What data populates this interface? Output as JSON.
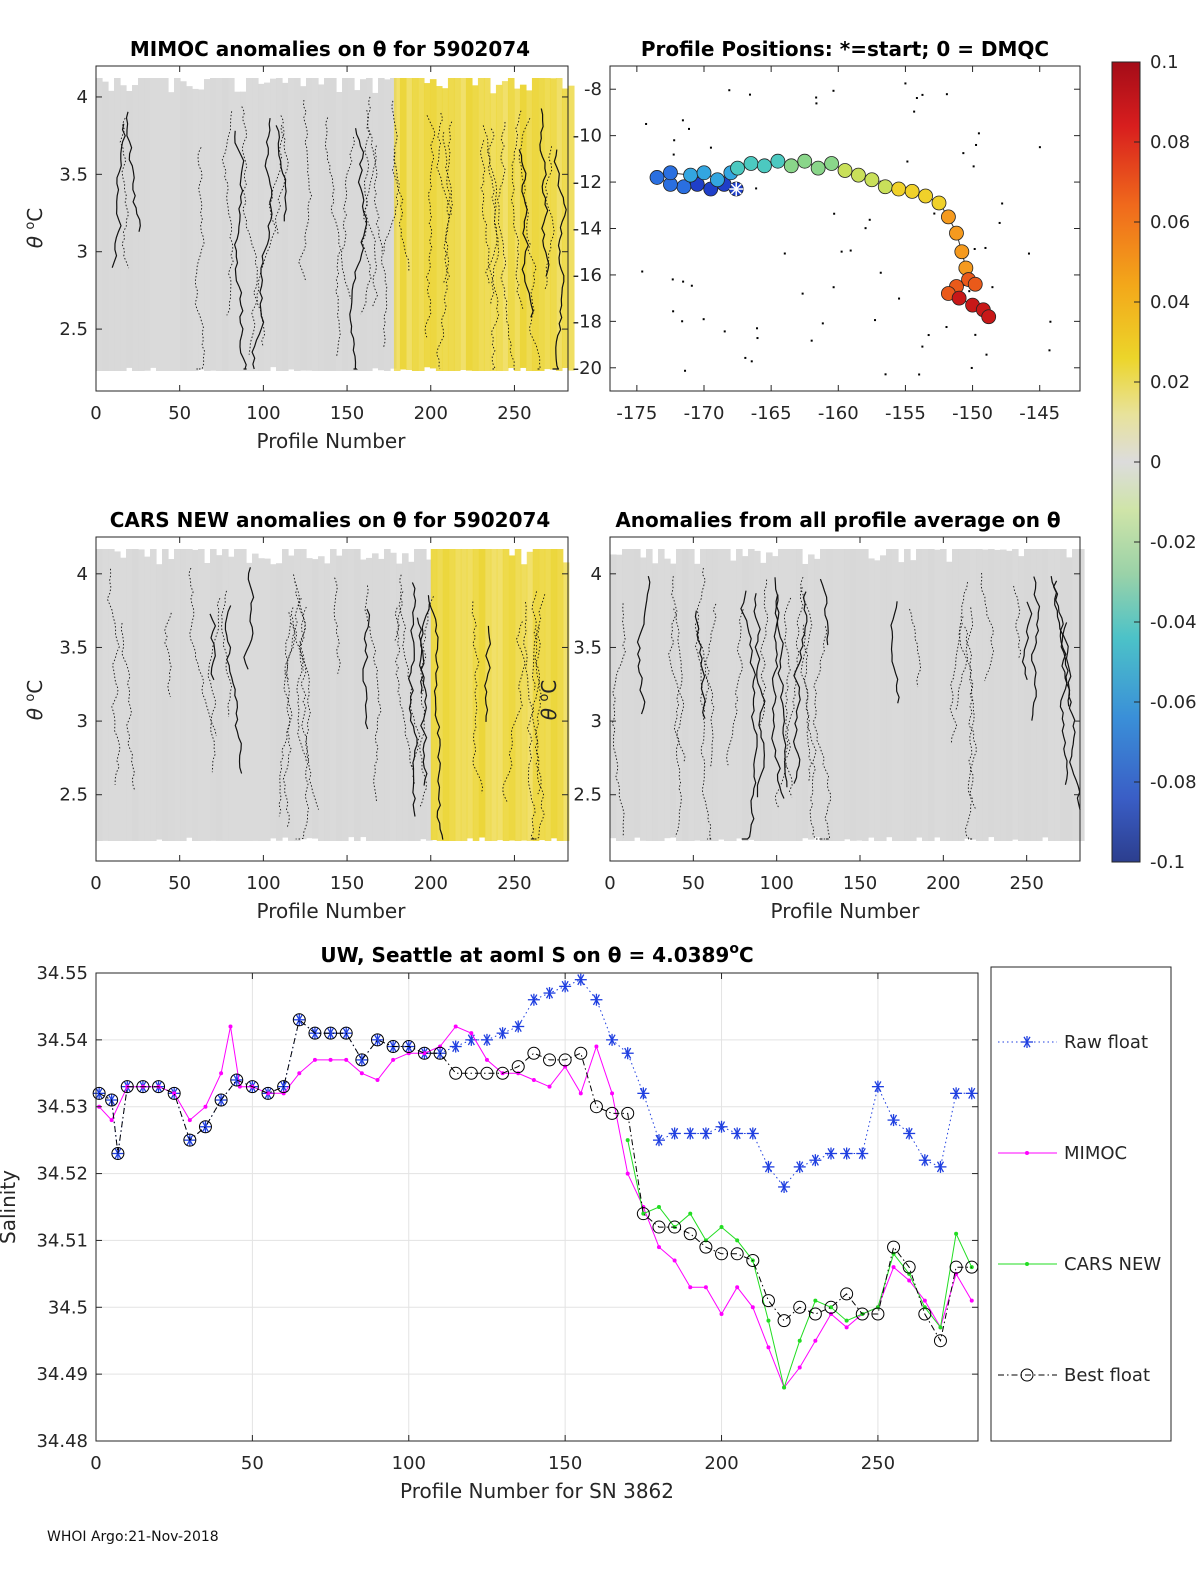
{
  "footer": "WHOI Argo:21-Nov-2018",
  "colors": {
    "grey": "#d8d8d8",
    "yellow": "#ecd63a",
    "raw": "#1f3fe0",
    "mimoc": "#ff00ff",
    "cars": "#22dd22",
    "best": "#000000"
  },
  "chart_data": [
    {
      "id": "mimoc_anom",
      "type": "heatmap",
      "title": "MIMOC anomalies on θ  for 5902074",
      "xlabel": "Profile Number",
      "ylabel_main": "θ ",
      "ylabel_unit": "C",
      "xlim": [
        0,
        282
      ],
      "ylim": [
        2.1,
        4.2
      ],
      "xticks": [
        "0",
        "50",
        "100",
        "150",
        "200",
        "250"
      ],
      "yticks": [
        "2.5",
        "3",
        "3.5",
        "4"
      ],
      "regions": [
        {
          "from": 0,
          "to": 178,
          "color": "grey"
        },
        {
          "from": 178,
          "to": 282,
          "color": "yellow"
        }
      ]
    },
    {
      "id": "positions",
      "type": "scatter",
      "title": "Profile Positions: *=start; 0 = DMQC",
      "xlim": [
        -177,
        -142
      ],
      "ylim": [
        -21,
        -7
      ],
      "xticks": [
        "-175",
        "-170",
        "-165",
        "-160",
        "-155",
        "-150",
        "-145"
      ],
      "yticks": [
        "-8",
        "-10",
        "-12",
        "-14",
        "-16",
        "-18",
        "-20"
      ],
      "track": [
        [
          -167.6,
          -12.3
        ],
        [
          -168.5,
          -12.1
        ],
        [
          -169.5,
          -12.3
        ],
        [
          -170.5,
          -12.1
        ],
        [
          -171.5,
          -12.2
        ],
        [
          -172.5,
          -12.1
        ],
        [
          -173.5,
          -11.8
        ],
        [
          -172.5,
          -11.6
        ],
        [
          -171.0,
          -11.7
        ],
        [
          -170.0,
          -11.6
        ],
        [
          -169.0,
          -11.9
        ],
        [
          -168.0,
          -11.6
        ],
        [
          -167.5,
          -11.4
        ],
        [
          -166.5,
          -11.2
        ],
        [
          -165.5,
          -11.3
        ],
        [
          -164.5,
          -11.1
        ],
        [
          -163.5,
          -11.3
        ],
        [
          -162.5,
          -11.1
        ],
        [
          -161.5,
          -11.4
        ],
        [
          -160.5,
          -11.2
        ],
        [
          -159.5,
          -11.5
        ],
        [
          -158.5,
          -11.7
        ],
        [
          -157.5,
          -11.9
        ],
        [
          -156.5,
          -12.2
        ],
        [
          -155.5,
          -12.3
        ],
        [
          -154.5,
          -12.4
        ],
        [
          -153.5,
          -12.6
        ],
        [
          -152.5,
          -12.9
        ],
        [
          -151.8,
          -13.5
        ],
        [
          -151.2,
          -14.2
        ],
        [
          -150.8,
          -15.0
        ],
        [
          -150.5,
          -15.7
        ],
        [
          -150.3,
          -16.2
        ],
        [
          -149.8,
          -16.4
        ],
        [
          -151.2,
          -16.5
        ],
        [
          -151.8,
          -16.8
        ],
        [
          -151.0,
          -17.0
        ],
        [
          -150.0,
          -17.3
        ],
        [
          -149.2,
          -17.5
        ],
        [
          -148.8,
          -17.8
        ]
      ],
      "start": [
        -167.6,
        -12.3
      ],
      "colorbar": {
        "ticks": [
          "0.1",
          "0.08",
          "0.06",
          "0.04",
          "0.02",
          "0",
          "-0.02",
          "-0.04",
          "-0.06",
          "-0.08",
          "-0.1"
        ]
      }
    },
    {
      "id": "cars_anom",
      "type": "heatmap",
      "title": "CARS NEW anomalies on θ for 5902074",
      "xlabel": "Profile Number",
      "ylabel_main": "θ ",
      "ylabel_unit": "C",
      "xlim": [
        0,
        282
      ],
      "ylim": [
        2.05,
        4.25
      ],
      "xticks": [
        "0",
        "50",
        "100",
        "150",
        "200",
        "250"
      ],
      "yticks": [
        "2.5",
        "3",
        "3.5",
        "4"
      ],
      "regions": [
        {
          "from": 0,
          "to": 200,
          "color": "grey"
        },
        {
          "from": 200,
          "to": 282,
          "color": "yellow"
        }
      ]
    },
    {
      "id": "avg_anom",
      "type": "heatmap",
      "title": "Anomalies from all profile average on θ",
      "xlabel": "Profile Number",
      "ylabel_main": "θ ",
      "ylabel_unit": "C",
      "xlim": [
        0,
        282
      ],
      "ylim": [
        2.05,
        4.25
      ],
      "xticks": [
        "0",
        "50",
        "100",
        "150",
        "200",
        "250"
      ],
      "yticks": [
        "2.5",
        "3",
        "3.5",
        "4"
      ],
      "regions": [
        {
          "from": 0,
          "to": 282,
          "color": "grey"
        }
      ]
    },
    {
      "id": "salinity",
      "type": "line",
      "title": "UW, Seattle at aoml S on θ = 4.0389",
      "title_sup": "o",
      "title_unit": "C",
      "xlabel": "Profile Number for SN 3862",
      "ylabel": "Salinity",
      "xlim": [
        0,
        282
      ],
      "ylim": [
        34.48,
        34.55
      ],
      "xticks": [
        "0",
        "50",
        "100",
        "150",
        "200",
        "250"
      ],
      "yticks": [
        "34.48",
        "34.49",
        "34.5",
        "34.51",
        "34.52",
        "34.53",
        "34.54",
        "34.55"
      ],
      "series": [
        {
          "name": "Raw float",
          "color": "raw",
          "style": "star-dotted",
          "x": [
            1,
            5,
            7,
            10,
            15,
            20,
            25,
            30,
            35,
            40,
            45,
            50,
            55,
            60,
            65,
            70,
            75,
            80,
            85,
            90,
            95,
            100,
            105,
            110,
            115,
            120,
            125,
            130,
            135,
            140,
            145,
            150,
            155,
            160,
            165,
            170,
            175,
            180,
            185,
            190,
            195,
            200,
            205,
            210,
            215,
            220,
            225,
            230,
            235,
            240,
            245,
            250,
            255,
            260,
            265,
            270,
            275,
            280
          ],
          "y": [
            34.532,
            34.531,
            34.523,
            34.533,
            34.533,
            34.533,
            34.532,
            34.525,
            34.527,
            34.531,
            34.534,
            34.533,
            34.532,
            34.533,
            34.543,
            34.541,
            34.541,
            34.541,
            34.537,
            34.54,
            34.539,
            34.539,
            34.538,
            34.538,
            34.539,
            34.54,
            34.54,
            34.541,
            34.542,
            34.546,
            34.547,
            34.548,
            34.549,
            34.546,
            34.54,
            34.538,
            34.532,
            34.525,
            34.526,
            34.526,
            34.526,
            34.527,
            34.526,
            34.526,
            34.521,
            34.518,
            34.521,
            34.522,
            34.523,
            34.523,
            34.523,
            34.533,
            34.528,
            34.526,
            34.522,
            34.521,
            34.532,
            34.532
          ]
        },
        {
          "name": "MIMOC",
          "color": "mimoc",
          "style": "dot-line",
          "x": [
            1,
            5,
            10,
            15,
            20,
            25,
            30,
            35,
            40,
            43,
            46,
            50,
            55,
            60,
            65,
            70,
            75,
            80,
            85,
            90,
            95,
            100,
            105,
            110,
            115,
            120,
            125,
            130,
            135,
            140,
            145,
            150,
            155,
            160,
            165,
            170,
            175,
            180,
            185,
            190,
            195,
            200,
            205,
            210,
            215,
            220,
            225,
            230,
            235,
            240,
            245,
            250,
            255,
            260,
            265,
            270,
            275,
            280
          ],
          "y": [
            34.53,
            34.528,
            34.533,
            34.533,
            34.533,
            34.532,
            34.528,
            34.53,
            34.535,
            34.542,
            34.533,
            34.533,
            34.532,
            34.532,
            34.535,
            34.537,
            34.537,
            34.537,
            34.535,
            34.534,
            34.537,
            34.538,
            34.538,
            34.539,
            34.542,
            34.541,
            34.537,
            34.535,
            34.535,
            34.534,
            34.533,
            34.536,
            34.532,
            34.539,
            34.532,
            34.52,
            34.515,
            34.509,
            34.507,
            34.503,
            34.503,
            34.499,
            34.503,
            34.5,
            34.494,
            34.488,
            34.491,
            34.495,
            34.499,
            34.497,
            34.499,
            34.5,
            34.506,
            34.504,
            34.501,
            34.497,
            34.505,
            34.501
          ]
        },
        {
          "name": "CARS NEW",
          "color": "cars",
          "style": "dot-line",
          "x": [
            170,
            175,
            180,
            185,
            190,
            195,
            200,
            205,
            210,
            215,
            220,
            225,
            230,
            235,
            240,
            245,
            250,
            255,
            260,
            265,
            270,
            275,
            280
          ],
          "y": [
            34.525,
            34.514,
            34.515,
            34.512,
            34.514,
            34.51,
            34.512,
            34.51,
            34.507,
            34.498,
            34.488,
            34.495,
            34.501,
            34.5,
            34.498,
            34.499,
            34.5,
            34.508,
            34.505,
            34.5,
            34.497,
            34.511,
            34.506
          ]
        },
        {
          "name": "Best float",
          "color": "best",
          "style": "circle-dashdot",
          "x": [
            1,
            5,
            7,
            10,
            15,
            20,
            25,
            30,
            35,
            40,
            45,
            50,
            55,
            60,
            65,
            70,
            75,
            80,
            85,
            90,
            95,
            100,
            105,
            110,
            115,
            120,
            125,
            130,
            135,
            140,
            145,
            150,
            155,
            160,
            165,
            170,
            175,
            180,
            185,
            190,
            195,
            200,
            205,
            210,
            215,
            220,
            225,
            230,
            235,
            240,
            245,
            250,
            255,
            260,
            265,
            270,
            275,
            280
          ],
          "y": [
            34.532,
            34.531,
            34.523,
            34.533,
            34.533,
            34.533,
            34.532,
            34.525,
            34.527,
            34.531,
            34.534,
            34.533,
            34.532,
            34.533,
            34.543,
            34.541,
            34.541,
            34.541,
            34.537,
            34.54,
            34.539,
            34.539,
            34.538,
            34.538,
            34.535,
            34.535,
            34.535,
            34.535,
            34.536,
            34.538,
            34.537,
            34.537,
            34.538,
            34.53,
            34.529,
            34.529,
            34.514,
            34.512,
            34.512,
            34.511,
            34.509,
            34.508,
            34.508,
            34.507,
            34.501,
            34.498,
            34.5,
            34.499,
            34.5,
            34.502,
            34.499,
            34.499,
            34.509,
            34.506,
            34.499,
            34.495,
            34.506,
            34.506
          ]
        }
      ]
    }
  ]
}
